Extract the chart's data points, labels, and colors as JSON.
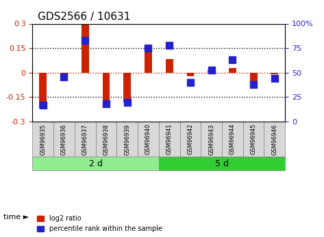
{
  "title": "GDS2566 / 10631",
  "categories": [
    "GSM96935",
    "GSM96936",
    "GSM96937",
    "GSM96938",
    "GSM96939",
    "GSM96940",
    "GSM96941",
    "GSM96942",
    "GSM96943",
    "GSM96944",
    "GSM96945",
    "GSM96946"
  ],
  "log2_ratio": [
    -0.22,
    -0.01,
    0.295,
    -0.195,
    -0.18,
    0.165,
    0.085,
    -0.02,
    0.015,
    0.03,
    -0.06,
    -0.01
  ],
  "percentile": [
    17,
    46,
    83,
    18,
    20,
    75,
    78,
    40,
    53,
    63,
    38,
    44
  ],
  "groups": [
    {
      "label": "2 d",
      "start": 0,
      "end": 6,
      "color": "#90EE90"
    },
    {
      "label": "5 d",
      "start": 6,
      "end": 12,
      "color": "#32CD32"
    }
  ],
  "ylim": [
    -0.3,
    0.3
  ],
  "y2lim": [
    0,
    100
  ],
  "yticks": [
    -0.3,
    -0.15,
    0.0,
    0.15,
    0.3
  ],
  "y2ticks": [
    0,
    25,
    50,
    75,
    100
  ],
  "hlines": [
    0.15,
    0.0,
    -0.15
  ],
  "bar_color": "#CC2200",
  "dot_color": "#2222CC",
  "bar_width": 0.35,
  "dot_size": 60,
  "bg_color": "#ffffff",
  "time_label": "time",
  "legend_items": [
    "log2 ratio",
    "percentile rank within the sample"
  ]
}
